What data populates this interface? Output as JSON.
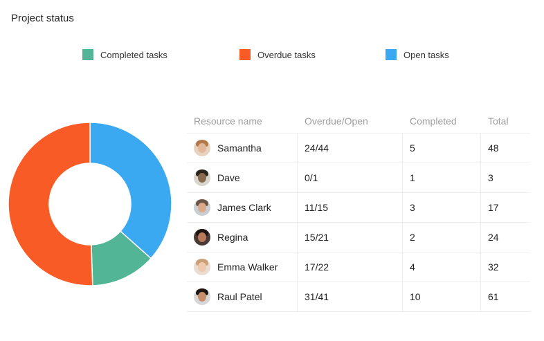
{
  "title": "Project status",
  "legend": [
    {
      "label": "Completed tasks",
      "color": "#52b596"
    },
    {
      "label": "Overdue tasks",
      "color": "#f95b26"
    },
    {
      "label": "Open tasks",
      "color": "#3ba8f2"
    }
  ],
  "chart_data": {
    "type": "pie",
    "variant": "donut",
    "title": "Project status",
    "categories": [
      "Completed tasks",
      "Overdue tasks",
      "Open tasks"
    ],
    "values": [
      25,
      98,
      71
    ],
    "colors": [
      "#52b596",
      "#f95b26",
      "#3ba8f2"
    ]
  },
  "table": {
    "headers": [
      "Resource name",
      "Overdue/Open",
      "Completed",
      "Total"
    ],
    "rows": [
      {
        "name": "Samantha",
        "overdue_open": "24/44",
        "completed": "5",
        "total": "48",
        "avatar": {
          "bg": "#e8d2c0",
          "skin": "#e2b899",
          "hair": "#b07a4a"
        }
      },
      {
        "name": "Dave",
        "overdue_open": "0/1",
        "completed": "1",
        "total": "3",
        "avatar": {
          "bg": "#d9d6cf",
          "skin": "#8a6a4e",
          "hair": "#2a241e"
        }
      },
      {
        "name": "James Clark",
        "overdue_open": "11/15",
        "completed": "3",
        "total": "17",
        "avatar": {
          "bg": "#c9cdd2",
          "skin": "#d9a98a",
          "hair": "#6b5544"
        }
      },
      {
        "name": "Regina",
        "overdue_open": "15/21",
        "completed": "2",
        "total": "24",
        "avatar": {
          "bg": "#4a3a36",
          "skin": "#b87a5a",
          "hair": "#1e1412"
        }
      },
      {
        "name": "Emma Walker",
        "overdue_open": "17/22",
        "completed": "4",
        "total": "32",
        "avatar": {
          "bg": "#eadcd0",
          "skin": "#efc9ad",
          "hair": "#caa079"
        }
      },
      {
        "name": "Raul Patel",
        "overdue_open": "31/41",
        "completed": "10",
        "total": "61",
        "avatar": {
          "bg": "#d7d7d7",
          "skin": "#c68e6b",
          "hair": "#1c1714"
        }
      }
    ]
  }
}
